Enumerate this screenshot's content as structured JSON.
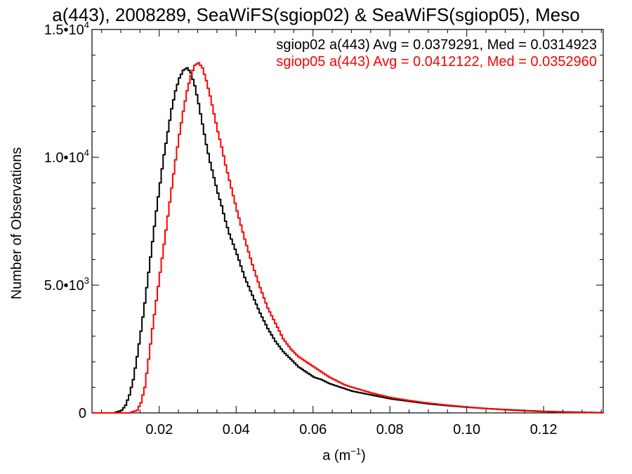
{
  "chart_data": {
    "type": "line",
    "title": "a(443), 2008289, SeaWiFS(sgiop02) & SeaWiFS(sgiop05), Meso",
    "xlabel": "a (m⁻¹)",
    "ylabel": "Number of Observations",
    "xlim": [
      0.0025,
      0.1355
    ],
    "ylim": [
      0,
      15000
    ],
    "grid": false,
    "legend_position": "top-right",
    "x_ticks": [
      {
        "value": 0.02,
        "label": "0.02"
      },
      {
        "value": 0.04,
        "label": "0.04"
      },
      {
        "value": 0.06,
        "label": "0.06"
      },
      {
        "value": 0.08,
        "label": "0.08"
      },
      {
        "value": 0.1,
        "label": "0.10"
      },
      {
        "value": 0.12,
        "label": "0.12"
      }
    ],
    "y_ticks": [
      {
        "value": 0,
        "mant": "0",
        "exp": ""
      },
      {
        "value": 5000,
        "mant": "5.0•10",
        "exp": "3"
      },
      {
        "value": 10000,
        "mant": "1.0•10",
        "exp": "4"
      },
      {
        "value": 15000,
        "mant": "1.5•10",
        "exp": "4"
      }
    ],
    "series": [
      {
        "label": "sgiop02 a(443) Avg = 0.0379291, Med = 0.0314923",
        "color": "#000000",
        "x": [
          0.0025,
          0.008,
          0.01,
          0.011,
          0.012,
          0.013,
          0.014,
          0.015,
          0.016,
          0.017,
          0.018,
          0.019,
          0.02,
          0.021,
          0.022,
          0.023,
          0.024,
          0.025,
          0.026,
          0.027,
          0.028,
          0.029,
          0.03,
          0.031,
          0.032,
          0.033,
          0.034,
          0.035,
          0.036,
          0.037,
          0.038,
          0.039,
          0.04,
          0.042,
          0.044,
          0.046,
          0.048,
          0.05,
          0.052,
          0.054,
          0.056,
          0.058,
          0.06,
          0.062,
          0.064,
          0.066,
          0.068,
          0.07,
          0.075,
          0.08,
          0.085,
          0.09,
          0.095,
          0.1,
          0.105,
          0.11,
          0.115,
          0.12,
          0.125,
          0.13,
          0.1355
        ],
        "y": [
          0,
          0,
          100,
          300,
          700,
          1300,
          2200,
          3200,
          4300,
          5500,
          6700,
          7900,
          9000,
          10100,
          11000,
          11900,
          12600,
          13100,
          13400,
          13500,
          13300,
          12800,
          12100,
          11300,
          10500,
          9800,
          9200,
          8600,
          8100,
          7500,
          7000,
          6600,
          6200,
          5300,
          4600,
          3900,
          3300,
          2800,
          2400,
          2100,
          1800,
          1600,
          1400,
          1300,
          1150,
          1050,
          950,
          850,
          700,
          550,
          450,
          350,
          280,
          220,
          170,
          130,
          90,
          60,
          40,
          25,
          10
        ]
      },
      {
        "label": "sgiop05 a(443) Avg = 0.0412122, Med = 0.0352960",
        "color": "#ff0000",
        "x": [
          0.0025,
          0.012,
          0.014,
          0.015,
          0.016,
          0.017,
          0.018,
          0.019,
          0.02,
          0.021,
          0.022,
          0.023,
          0.024,
          0.025,
          0.026,
          0.027,
          0.028,
          0.029,
          0.03,
          0.031,
          0.032,
          0.033,
          0.034,
          0.035,
          0.036,
          0.037,
          0.038,
          0.039,
          0.04,
          0.042,
          0.044,
          0.046,
          0.048,
          0.05,
          0.052,
          0.054,
          0.056,
          0.058,
          0.06,
          0.062,
          0.064,
          0.066,
          0.068,
          0.07,
          0.075,
          0.08,
          0.085,
          0.09,
          0.095,
          0.1,
          0.105,
          0.11,
          0.115,
          0.12,
          0.125,
          0.13,
          0.1355
        ],
        "y": [
          0,
          0,
          100,
          400,
          1000,
          2100,
          3300,
          4400,
          5500,
          6600,
          7700,
          8800,
          9900,
          10900,
          11800,
          12600,
          13200,
          13600,
          13700,
          13500,
          13000,
          12400,
          11700,
          11000,
          10400,
          9700,
          9100,
          8500,
          7900,
          6800,
          5800,
          4900,
          4100,
          3500,
          2900,
          2500,
          2200,
          2000,
          1800,
          1600,
          1400,
          1250,
          1100,
          1000,
          780,
          600,
          480,
          380,
          300,
          230,
          170,
          120,
          80,
          50,
          30,
          15,
          5
        ]
      }
    ]
  }
}
